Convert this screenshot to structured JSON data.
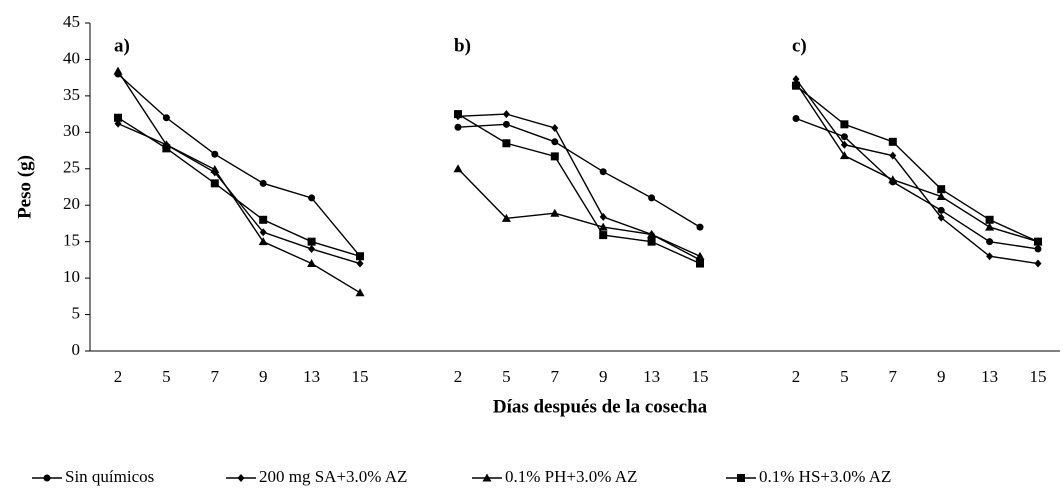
{
  "chart_data": {
    "type": "line",
    "ylabel": "Peso (g)",
    "xlabel": "Días después de la cosecha",
    "ylim": [
      0,
      45
    ],
    "yticks": [
      0,
      5,
      10,
      15,
      20,
      25,
      30,
      35,
      40,
      45
    ],
    "color": "#000000",
    "series": [
      {
        "name": "Sin químicos",
        "marker": "circle"
      },
      {
        "name": "200 mg SA+3.0% AZ",
        "marker": "diamond"
      },
      {
        "name": "0.1% PH+3.0% AZ",
        "marker": "triangle"
      },
      {
        "name": "0.1% HS+3.0% AZ",
        "marker": "square"
      }
    ],
    "legend": "bottom",
    "panels": [
      {
        "label": "a)",
        "categories": [
          "2",
          "5",
          "7",
          "9",
          "13",
          "15"
        ],
        "series": [
          {
            "values": [
              38,
              32,
              27,
              23,
              21,
              13
            ]
          },
          {
            "values": [
              31.2,
              28.3,
              24.5,
              16.3,
              14,
              12
            ]
          },
          {
            "values": [
              38.4,
              28.3,
              24.9,
              15,
              12,
              8
            ]
          },
          {
            "values": [
              32,
              27.8,
              23,
              18,
              15,
              13
            ]
          }
        ]
      },
      {
        "label": "b)",
        "categories": [
          "2",
          "5",
          "7",
          "9",
          "13",
          "15"
        ],
        "series": [
          {
            "values": [
              30.7,
              31.1,
              28.7,
              24.6,
              21,
              17
            ]
          },
          {
            "values": [
              32.2,
              32.5,
              30.6,
              18.4,
              16,
              12.5
            ]
          },
          {
            "values": [
              25,
              18.2,
              18.9,
              17,
              16,
              13
            ]
          },
          {
            "values": [
              32.5,
              28.5,
              26.7,
              15.9,
              15,
              12
            ]
          }
        ]
      },
      {
        "label": "c)",
        "categories": [
          "2",
          "5",
          "7",
          "9",
          "13",
          "15"
        ],
        "series": [
          {
            "values": [
              31.9,
              29.4,
              23.2,
              19.3,
              15,
              14
            ]
          },
          {
            "values": [
              37.3,
              28.3,
              26.8,
              18.3,
              13,
              12
            ]
          },
          {
            "values": [
              36.8,
              26.8,
              23.5,
              21.2,
              17,
              15
            ]
          },
          {
            "values": [
              36.4,
              31.1,
              28.7,
              22.2,
              18,
              15
            ]
          }
        ]
      }
    ]
  }
}
